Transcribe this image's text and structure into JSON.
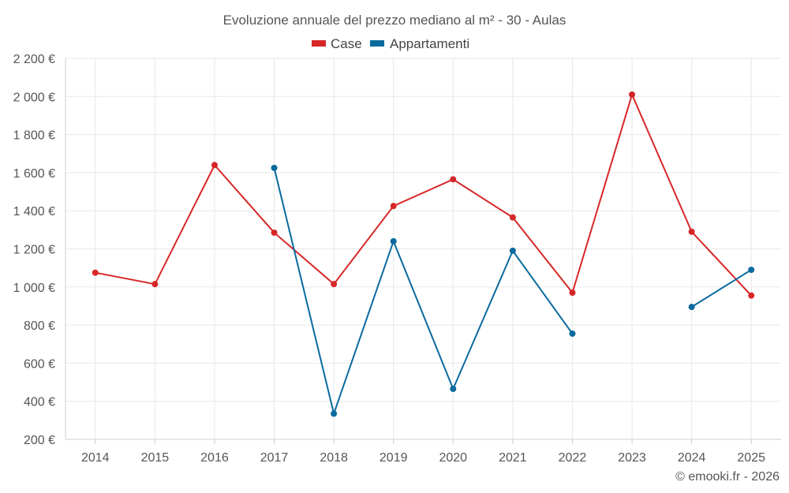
{
  "chart_data": {
    "type": "line",
    "title": "Evoluzione annuale del prezzo mediano al m² - 30 - Aulas",
    "categories": [
      "2014",
      "2015",
      "2016",
      "2017",
      "2018",
      "2019",
      "2020",
      "2021",
      "2022",
      "2023",
      "2024",
      "2025"
    ],
    "series": [
      {
        "name": "Case",
        "color": "#d62728",
        "values": [
          1075,
          1015,
          1640,
          1285,
          1015,
          1425,
          1565,
          1365,
          970,
          2010,
          1290,
          955
        ]
      },
      {
        "name": "Appartamenti",
        "color": "#0a6a9e",
        "values": [
          null,
          null,
          null,
          1625,
          335,
          1240,
          465,
          1190,
          755,
          null,
          895,
          1090
        ]
      }
    ],
    "ylim": [
      200,
      2200
    ],
    "y_ticks": [
      200,
      400,
      600,
      800,
      1000,
      1200,
      1400,
      1600,
      1800,
      2000,
      2200
    ],
    "y_tick_labels": [
      "200 €",
      "400 €",
      "600 €",
      "800 €",
      "1 000 €",
      "1 200 €",
      "1 400 €",
      "1 600 €",
      "1 800 €",
      "2 000 €",
      "2 200 €"
    ],
    "grid": true,
    "legend_position": "top-center"
  },
  "footer": "© emooki.fr - 2026"
}
